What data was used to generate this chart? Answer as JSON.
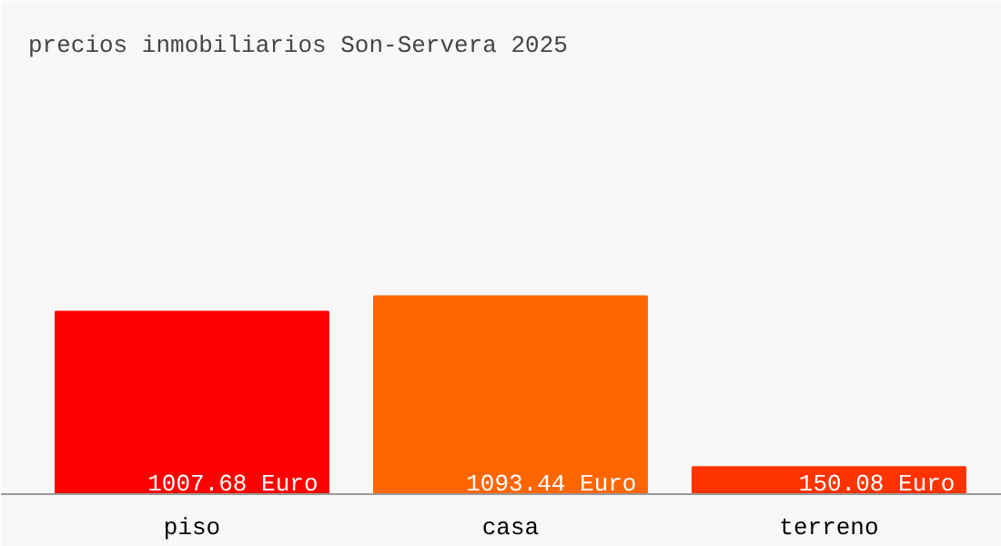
{
  "chart_data": {
    "type": "bar",
    "title": "precios inmobiliarios Son-Servera 2025",
    "categories": [
      "piso",
      "casa",
      "terreno"
    ],
    "values": [
      1007.68,
      1093.44,
      150.08
    ],
    "colors": [
      "#ff0000",
      "#ff6600",
      "#ff3300"
    ],
    "value_labels": [
      "1007.68 Euro",
      "1093.44 Euro",
      "150.08 Euro"
    ],
    "grid": false
  }
}
